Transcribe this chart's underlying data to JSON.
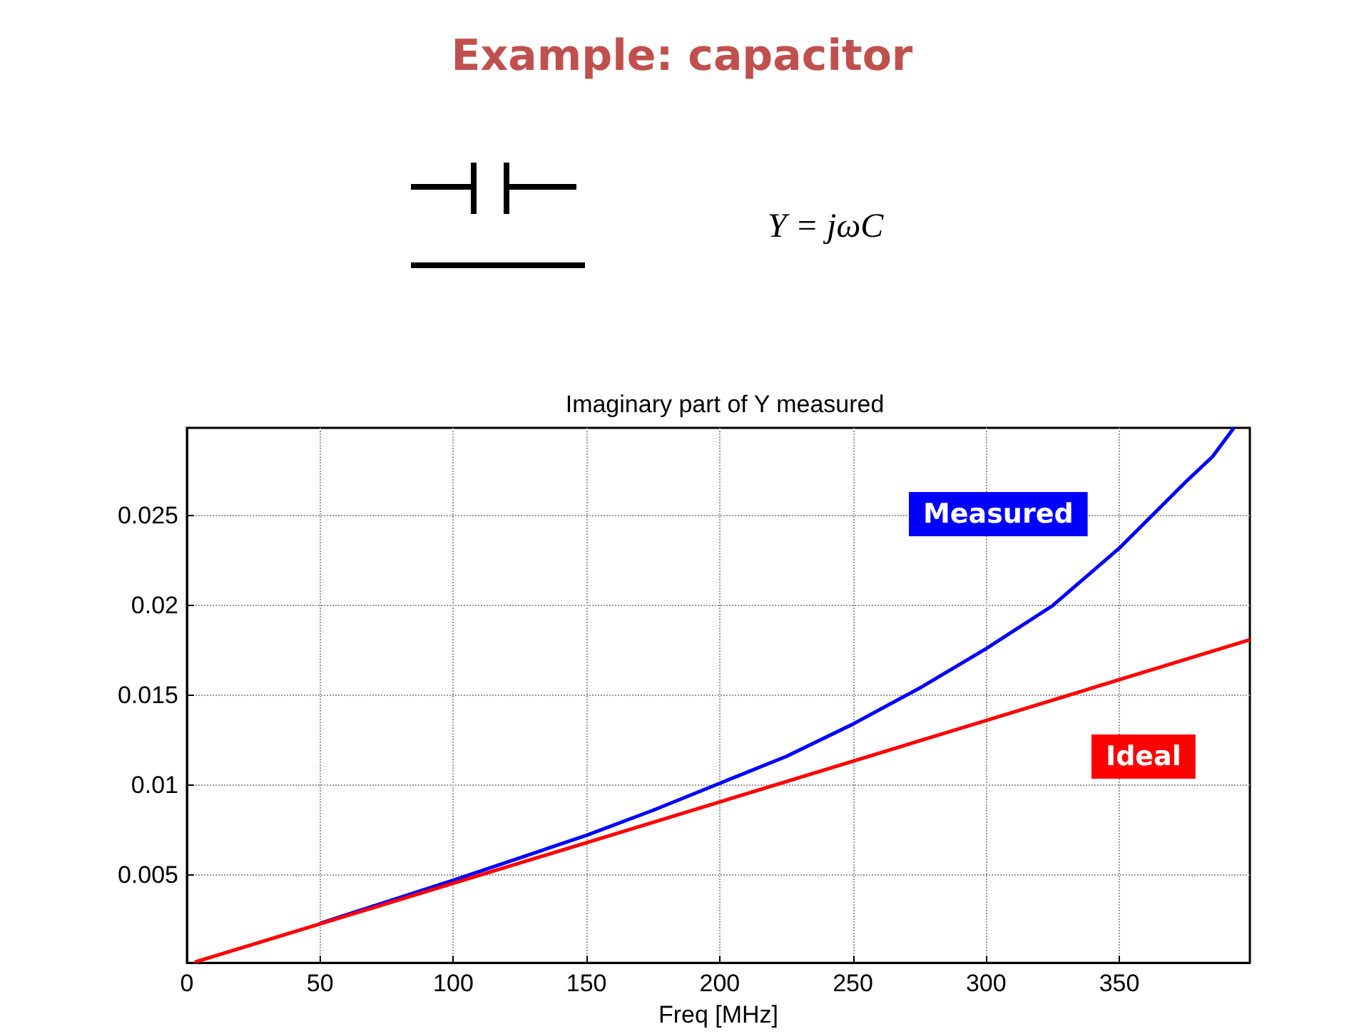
{
  "chart_data": {
    "type": "line",
    "title": "Example: capacitor",
    "subtitle": "Imaginary part of Y measured",
    "xlabel": "Freq [MHz]",
    "annotations": [
      "Y = jωC"
    ],
    "xlim": [
      0,
      399
    ],
    "xticks": [
      0,
      50,
      100,
      150,
      200,
      250,
      300,
      350
    ],
    "ylim": [
      0.0001,
      0.0299
    ],
    "yticks": [
      0.005,
      0.01,
      0.015,
      0.02,
      0.025
    ],
    "grid": true,
    "legend": false,
    "marker": "none",
    "line_style": "solid",
    "series": [
      {
        "name": "Measured",
        "color": "#0000ff",
        "x": [
          50,
          100,
          150,
          175,
          200,
          225,
          250,
          275,
          300,
          325,
          350,
          375,
          385,
          393
        ],
        "values": [
          0.0023,
          0.0047,
          0.0072,
          0.0086,
          0.0101,
          0.0116,
          0.0134,
          0.0154,
          0.0176,
          0.02,
          0.0232,
          0.0269,
          0.0283,
          0.0299
        ]
      },
      {
        "name": "Ideal",
        "color": "#ff0000",
        "x": [
          3,
          100,
          200,
          300,
          399
        ],
        "values": [
          0.00014,
          0.00453,
          0.00906,
          0.0136,
          0.0181
        ]
      }
    ]
  }
}
